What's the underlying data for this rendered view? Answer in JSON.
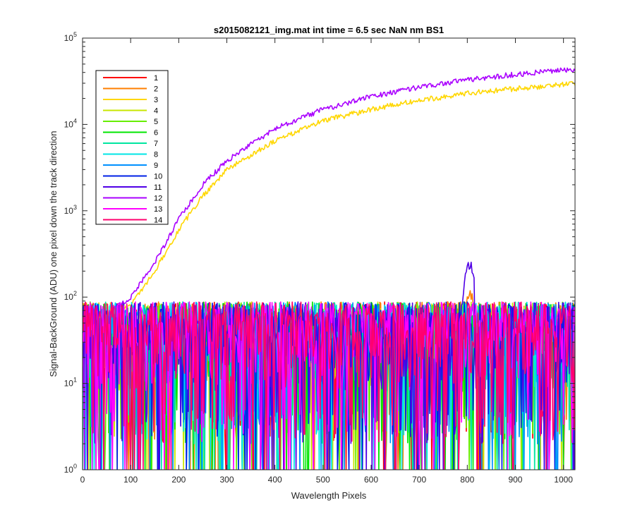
{
  "chart_data": {
    "type": "line",
    "title": "s2015082121_img.mat int time = 6.5 sec  NaN nm BS1",
    "xlabel": "Wavelength Pixels",
    "ylabel": "Signal-BackGround (ADU) one pixel down the track direction",
    "xlim": [
      0,
      1024
    ],
    "ylim": [
      1,
      100000
    ],
    "yscale": "log",
    "grid": false,
    "legend_position": "top-left",
    "x_ticks": [
      "0",
      "100",
      "200",
      "300",
      "400",
      "500",
      "600",
      "700",
      "800",
      "900",
      "1000"
    ],
    "y_ticks": [
      {
        "base": "10",
        "exp": "0"
      },
      {
        "base": "10",
        "exp": "1"
      },
      {
        "base": "10",
        "exp": "2"
      },
      {
        "base": "10",
        "exp": "3"
      },
      {
        "base": "10",
        "exp": "4"
      },
      {
        "base": "10",
        "exp": "5"
      }
    ],
    "series": [
      {
        "name": "1",
        "color": "#ff0000",
        "kind": "noise",
        "peak": 0
      },
      {
        "name": "2",
        "color": "#ff7f00",
        "kind": "noise",
        "peak": 120
      },
      {
        "name": "3",
        "color": "#ffd700",
        "kind": "rising",
        "start_x": 60,
        "points": [
          [
            60,
            60
          ],
          [
            100,
            80
          ],
          [
            150,
            200
          ],
          [
            200,
            600
          ],
          [
            250,
            1500
          ],
          [
            300,
            3000
          ],
          [
            400,
            6500
          ],
          [
            500,
            11000
          ],
          [
            600,
            15000
          ],
          [
            700,
            19000
          ],
          [
            800,
            23000
          ],
          [
            900,
            26000
          ],
          [
            1000,
            29000
          ],
          [
            1024,
            30000
          ]
        ]
      },
      {
        "name": "4",
        "color": "#c8e600",
        "kind": "noise",
        "peak": 0
      },
      {
        "name": "5",
        "color": "#66ee00",
        "kind": "noise",
        "peak": 0
      },
      {
        "name": "6",
        "color": "#00e600",
        "kind": "noise",
        "peak": 0
      },
      {
        "name": "7",
        "color": "#00e6a0",
        "kind": "noise",
        "peak": 0
      },
      {
        "name": "8",
        "color": "#00e6e6",
        "kind": "noise",
        "peak": 0
      },
      {
        "name": "9",
        "color": "#0090ff",
        "kind": "noise",
        "peak": 0
      },
      {
        "name": "10",
        "color": "#0020e6",
        "kind": "noise",
        "peak": 0
      },
      {
        "name": "11",
        "color": "#5000e6",
        "kind": "noise",
        "peak": 260
      },
      {
        "name": "12",
        "color": "#aa00ff",
        "kind": "rising",
        "start_x": 60,
        "points": [
          [
            60,
            70
          ],
          [
            100,
            100
          ],
          [
            150,
            250
          ],
          [
            200,
            800
          ],
          [
            250,
            2000
          ],
          [
            300,
            3800
          ],
          [
            400,
            9000
          ],
          [
            500,
            15000
          ],
          [
            600,
            21000
          ],
          [
            700,
            27000
          ],
          [
            800,
            33000
          ],
          [
            900,
            38000
          ],
          [
            1000,
            43000
          ],
          [
            1024,
            44000
          ]
        ]
      },
      {
        "name": "13",
        "color": "#ff00ff",
        "kind": "noise",
        "peak": 0
      },
      {
        "name": "14",
        "color": "#ff006e",
        "kind": "noise",
        "peak": 0
      }
    ]
  }
}
